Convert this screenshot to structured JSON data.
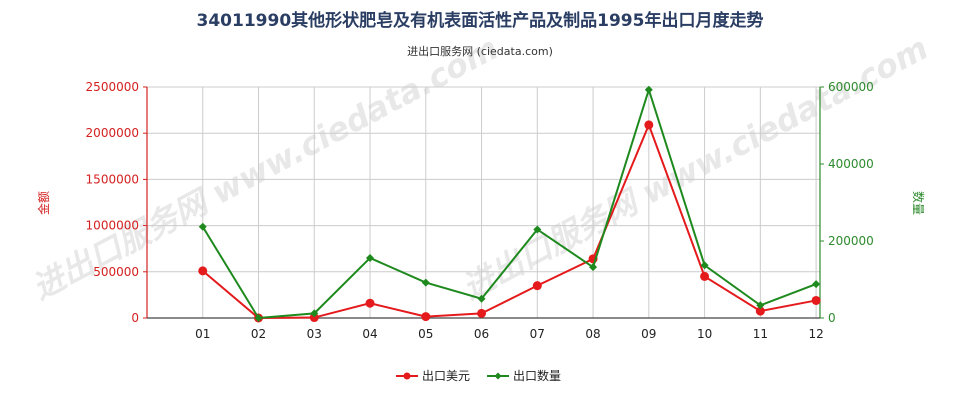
{
  "chart_data": {
    "type": "line",
    "title": "34011990其他形状肥皂及有机表面活性产品及制品1995年出口月度走势",
    "subtitle": "进出口服务网 (ciedata.com)",
    "watermark": "进出口服务网 www.ciedata.com",
    "categories": [
      "01",
      "02",
      "03",
      "04",
      "05",
      "06",
      "07",
      "08",
      "09",
      "10",
      "11",
      "12"
    ],
    "ylabel_left": "金额",
    "ylabel_right": "数量",
    "ylim_left": [
      0,
      2500000
    ],
    "ylim_right": [
      0,
      600000
    ],
    "yticks_left": [
      "0",
      "500000",
      "1000000",
      "1500000",
      "2000000",
      "2500000"
    ],
    "yticks_right": [
      "0",
      "200000",
      "400000",
      "600000"
    ],
    "grid": true,
    "legend_position": "bottom",
    "series": [
      {
        "name": "出口美元",
        "axis": "left",
        "color": "#e41a1c",
        "values": [
          510000,
          0,
          5000,
          160000,
          15000,
          50000,
          350000,
          640000,
          2090000,
          450000,
          75000,
          190000
        ]
      },
      {
        "name": "出口数量",
        "axis": "right",
        "color": "#1e8a1e",
        "values": [
          237000,
          0,
          12000,
          156000,
          92000,
          50000,
          230000,
          132000,
          593000,
          137000,
          33000,
          88000
        ]
      }
    ]
  }
}
